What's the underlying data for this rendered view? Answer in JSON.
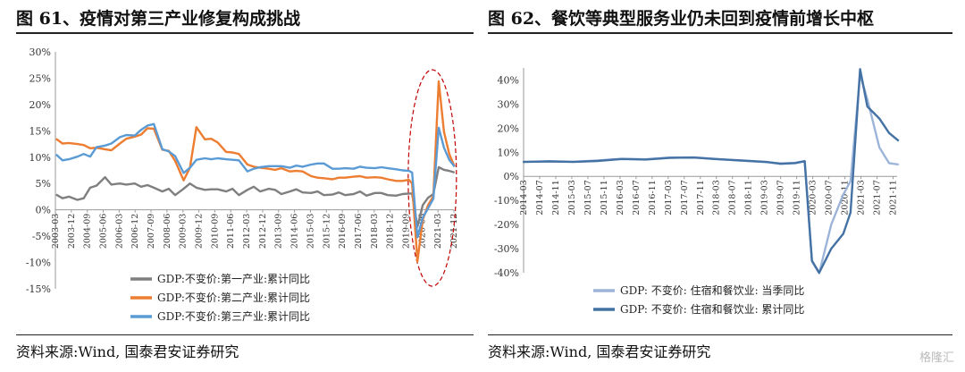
{
  "header": {
    "left_title": "图 61、疫情对第三产业修复构成挑战",
    "right_title": "图 62、餐饮等典型服务业仍未回到疫情前增长中枢"
  },
  "footer": {
    "left_source": "资料来源:Wind, 国泰君安证券研究",
    "right_source": "资料来源:Wind, 国泰君安证券研究"
  },
  "watermark": "格隆汇",
  "chart_data": [
    {
      "type": "line",
      "ylim": [
        -15,
        30
      ],
      "yticks": [
        "-15%",
        "-10%",
        "-5%",
        "0%",
        "5%",
        "10%",
        "15%",
        "20%",
        "25%",
        "30%"
      ],
      "x_start": "2003-03",
      "x_end": "2021-12",
      "xticks": [
        "2003-03",
        "2003-12",
        "2004-09",
        "2005-06",
        "2006-03",
        "2006-12",
        "2007-09",
        "2008-06",
        "2009-03",
        "2009-12",
        "2010-09",
        "2011-06",
        "2012-03",
        "2012-12",
        "2013-09",
        "2014-06",
        "2015-03",
        "2015-12",
        "2016-09",
        "2017-06",
        "2018-03",
        "2018-12",
        "2019-09",
        "2020-06",
        "2021-03",
        "2021-12"
      ],
      "legend_position": "bottom-center",
      "annotation": "dashed-ellipse around 2019-12 to 2021-12",
      "series": [
        {
          "name": "GDP:不变价:第一产业:累计同比",
          "color": "#7f7f7f",
          "points": [
            [
              2003.2,
              2.9
            ],
            [
              2003.5,
              2.2
            ],
            [
              2003.8,
              2.5
            ],
            [
              2004.2,
              1.9
            ],
            [
              2004.5,
              2.2
            ],
            [
              2004.8,
              4.2
            ],
            [
              2005.1,
              4.6
            ],
            [
              2005.5,
              6.2
            ],
            [
              2005.8,
              4.8
            ],
            [
              2006.2,
              5.0
            ],
            [
              2006.5,
              4.8
            ],
            [
              2006.9,
              5.0
            ],
            [
              2007.2,
              4.4
            ],
            [
              2007.5,
              4.7
            ],
            [
              2007.8,
              4.2
            ],
            [
              2008.2,
              3.5
            ],
            [
              2008.5,
              4.0
            ],
            [
              2008.8,
              2.8
            ],
            [
              2009.2,
              4.0
            ],
            [
              2009.5,
              5.0
            ],
            [
              2009.8,
              4.2
            ],
            [
              2010.2,
              3.8
            ],
            [
              2010.5,
              3.9
            ],
            [
              2010.8,
              3.9
            ],
            [
              2011.2,
              3.5
            ],
            [
              2011.5,
              4.0
            ],
            [
              2011.8,
              2.8
            ],
            [
              2012.2,
              3.8
            ],
            [
              2012.5,
              4.4
            ],
            [
              2012.8,
              3.5
            ],
            [
              2013.2,
              4.0
            ],
            [
              2013.5,
              3.8
            ],
            [
              2013.8,
              3.0
            ],
            [
              2014.2,
              3.5
            ],
            [
              2014.5,
              3.9
            ],
            [
              2014.8,
              3.3
            ],
            [
              2015.2,
              3.2
            ],
            [
              2015.5,
              3.5
            ],
            [
              2015.8,
              2.8
            ],
            [
              2016.2,
              2.9
            ],
            [
              2016.5,
              3.3
            ],
            [
              2016.8,
              2.8
            ],
            [
              2017.2,
              3.0
            ],
            [
              2017.5,
              3.5
            ],
            [
              2017.8,
              2.7
            ],
            [
              2018.2,
              3.2
            ],
            [
              2018.5,
              3.2
            ],
            [
              2018.8,
              2.8
            ],
            [
              2019.2,
              2.7
            ],
            [
              2019.5,
              3.0
            ],
            [
              2019.8,
              3.1
            ],
            [
              2019.95,
              3.1
            ],
            [
              2020.2,
              -3.2
            ],
            [
              2020.45,
              0.9
            ],
            [
              2020.7,
              2.3
            ],
            [
              2020.95,
              3.0
            ],
            [
              2021.2,
              8.1
            ],
            [
              2021.45,
              7.6
            ],
            [
              2021.7,
              7.4
            ],
            [
              2021.95,
              7.1
            ]
          ]
        },
        {
          "name": "GDP:不变价:第二产业:累计同比",
          "color": "#ed7d31",
          "points": [
            [
              2003.2,
              13.5
            ],
            [
              2003.5,
              12.6
            ],
            [
              2003.8,
              12.7
            ],
            [
              2004.2,
              12.5
            ],
            [
              2004.5,
              12.3
            ],
            [
              2004.8,
              11.7
            ],
            [
              2005.1,
              11.8
            ],
            [
              2005.5,
              11.5
            ],
            [
              2005.8,
              11.3
            ],
            [
              2006.2,
              12.6
            ],
            [
              2006.5,
              13.5
            ],
            [
              2006.9,
              13.9
            ],
            [
              2007.2,
              14.3
            ],
            [
              2007.5,
              15.5
            ],
            [
              2007.8,
              15.4
            ],
            [
              2008.2,
              11.4
            ],
            [
              2008.5,
              11.2
            ],
            [
              2008.8,
              9.3
            ],
            [
              2009.2,
              5.6
            ],
            [
              2009.5,
              8.0
            ],
            [
              2009.8,
              15.7
            ],
            [
              2010.2,
              13.4
            ],
            [
              2010.5,
              13.5
            ],
            [
              2010.8,
              12.8
            ],
            [
              2011.2,
              11.0
            ],
            [
              2011.5,
              10.9
            ],
            [
              2011.8,
              10.6
            ],
            [
              2012.2,
              8.6
            ],
            [
              2012.5,
              8.2
            ],
            [
              2012.8,
              8.0
            ],
            [
              2013.2,
              7.8
            ],
            [
              2013.5,
              7.6
            ],
            [
              2013.8,
              7.9
            ],
            [
              2014.2,
              7.3
            ],
            [
              2014.5,
              7.4
            ],
            [
              2014.8,
              7.3
            ],
            [
              2015.2,
              6.4
            ],
            [
              2015.5,
              6.1
            ],
            [
              2015.8,
              6.0
            ],
            [
              2016.2,
              5.8
            ],
            [
              2016.5,
              6.1
            ],
            [
              2016.8,
              6.1
            ],
            [
              2017.2,
              6.3
            ],
            [
              2017.5,
              6.4
            ],
            [
              2017.8,
              6.1
            ],
            [
              2018.2,
              6.2
            ],
            [
              2018.5,
              6.1
            ],
            [
              2018.8,
              5.8
            ],
            [
              2019.2,
              5.5
            ],
            [
              2019.5,
              5.5
            ],
            [
              2019.8,
              5.7
            ],
            [
              2019.95,
              5.0
            ],
            [
              2020.2,
              -9.8
            ],
            [
              2020.45,
              -1.9
            ],
            [
              2020.7,
              0.9
            ],
            [
              2020.95,
              2.6
            ],
            [
              2021.2,
              24.4
            ],
            [
              2021.45,
              14.8
            ],
            [
              2021.7,
              10.6
            ],
            [
              2021.95,
              8.2
            ]
          ]
        },
        {
          "name": "GDP:不变价:第三产业:累计同比",
          "color": "#5b9bd5",
          "points": [
            [
              2003.2,
              10.5
            ],
            [
              2003.5,
              9.4
            ],
            [
              2003.8,
              9.6
            ],
            [
              2004.2,
              10.1
            ],
            [
              2004.5,
              10.6
            ],
            [
              2004.8,
              10.1
            ],
            [
              2005.1,
              11.9
            ],
            [
              2005.5,
              12.2
            ],
            [
              2005.8,
              12.6
            ],
            [
              2006.2,
              13.8
            ],
            [
              2006.5,
              14.2
            ],
            [
              2006.9,
              14.1
            ],
            [
              2007.2,
              15.2
            ],
            [
              2007.5,
              16.0
            ],
            [
              2007.8,
              16.3
            ],
            [
              2008.2,
              11.5
            ],
            [
              2008.5,
              11.1
            ],
            [
              2008.8,
              10.2
            ],
            [
              2009.2,
              7.0
            ],
            [
              2009.5,
              8.0
            ],
            [
              2009.8,
              9.5
            ],
            [
              2010.2,
              9.8
            ],
            [
              2010.5,
              9.6
            ],
            [
              2010.8,
              9.8
            ],
            [
              2011.2,
              9.6
            ],
            [
              2011.5,
              9.5
            ],
            [
              2011.8,
              9.4
            ],
            [
              2012.2,
              7.3
            ],
            [
              2012.5,
              7.8
            ],
            [
              2012.8,
              8.1
            ],
            [
              2013.2,
              8.3
            ],
            [
              2013.5,
              8.3
            ],
            [
              2013.8,
              8.3
            ],
            [
              2014.2,
              8.0
            ],
            [
              2014.5,
              8.4
            ],
            [
              2014.8,
              8.2
            ],
            [
              2015.2,
              8.6
            ],
            [
              2015.5,
              8.8
            ],
            [
              2015.8,
              8.8
            ],
            [
              2016.2,
              7.8
            ],
            [
              2016.5,
              7.8
            ],
            [
              2016.8,
              7.9
            ],
            [
              2017.2,
              7.8
            ],
            [
              2017.5,
              8.2
            ],
            [
              2017.8,
              8.0
            ],
            [
              2018.2,
              7.9
            ],
            [
              2018.5,
              8.1
            ],
            [
              2018.8,
              7.9
            ],
            [
              2019.2,
              7.7
            ],
            [
              2019.5,
              7.5
            ],
            [
              2019.8,
              7.4
            ],
            [
              2019.95,
              7.1
            ],
            [
              2020.2,
              -5.2
            ],
            [
              2020.45,
              -1.5
            ],
            [
              2020.7,
              0.3
            ],
            [
              2020.95,
              2.1
            ],
            [
              2021.2,
              15.6
            ],
            [
              2021.45,
              11.8
            ],
            [
              2021.7,
              9.5
            ],
            [
              2021.95,
              8.2
            ]
          ]
        }
      ]
    },
    {
      "type": "line",
      "ylim": [
        -40,
        45
      ],
      "yticks": [
        "-40%",
        "-30%",
        "-20%",
        "-10%",
        "0%",
        "10%",
        "20%",
        "30%",
        "40%"
      ],
      "x_start": "2014-03",
      "x_end": "2021-12",
      "xticks": [
        "2014-03",
        "2014-07",
        "2014-11",
        "2015-03",
        "2015-07",
        "2015-11",
        "2016-03",
        "2016-07",
        "2016-11",
        "2017-03",
        "2017-07",
        "2017-11",
        "2018-03",
        "2018-07",
        "2018-11",
        "2019-03",
        "2019-07",
        "2019-11",
        "2020-03",
        "2020-07",
        "2020-11",
        "2021-03",
        "2021-07",
        "2021-11"
      ],
      "legend_position": "bottom-center",
      "series": [
        {
          "name": "GDP: 不变价: 住宿和餐饮业: 当季同比",
          "color": "#9db4d9",
          "points": [
            [
              2014.15,
              6.0
            ],
            [
              2014.7,
              6.3
            ],
            [
              2015.2,
              6.1
            ],
            [
              2015.7,
              6.6
            ],
            [
              2016.2,
              7.3
            ],
            [
              2016.7,
              7.1
            ],
            [
              2017.2,
              7.8
            ],
            [
              2017.7,
              7.9
            ],
            [
              2018.2,
              7.2
            ],
            [
              2018.7,
              6.5
            ],
            [
              2019.2,
              5.9
            ],
            [
              2019.5,
              5.4
            ],
            [
              2019.8,
              5.6
            ],
            [
              2020.0,
              6.4
            ],
            [
              2020.15,
              -35.3
            ],
            [
              2020.3,
              -40.2
            ],
            [
              2020.55,
              -20.0
            ],
            [
              2020.8,
              -7.5
            ],
            [
              2020.95,
              -2.0
            ],
            [
              2021.15,
              42.2
            ],
            [
              2021.3,
              32.0
            ],
            [
              2021.55,
              12.0
            ],
            [
              2021.75,
              5.5
            ],
            [
              2021.95,
              4.9
            ]
          ]
        },
        {
          "name": "GDP: 不变价: 住宿和餐饮业: 累计同比",
          "color": "#4472a4",
          "points": [
            [
              2014.15,
              6.0
            ],
            [
              2014.7,
              6.2
            ],
            [
              2015.2,
              6.0
            ],
            [
              2015.7,
              6.4
            ],
            [
              2016.2,
              7.2
            ],
            [
              2016.7,
              7.0
            ],
            [
              2017.2,
              7.7
            ],
            [
              2017.7,
              7.8
            ],
            [
              2018.2,
              7.1
            ],
            [
              2018.7,
              6.6
            ],
            [
              2019.2,
              6.0
            ],
            [
              2019.5,
              5.2
            ],
            [
              2019.8,
              5.5
            ],
            [
              2020.0,
              6.3
            ],
            [
              2020.15,
              -35.0
            ],
            [
              2020.3,
              -40.0
            ],
            [
              2020.55,
              -30.0
            ],
            [
              2020.8,
              -23.8
            ],
            [
              2020.95,
              -15.0
            ],
            [
              2021.15,
              44.5
            ],
            [
              2021.3,
              29.0
            ],
            [
              2021.55,
              24.0
            ],
            [
              2021.75,
              18.0
            ],
            [
              2021.95,
              14.7
            ]
          ]
        }
      ]
    }
  ]
}
